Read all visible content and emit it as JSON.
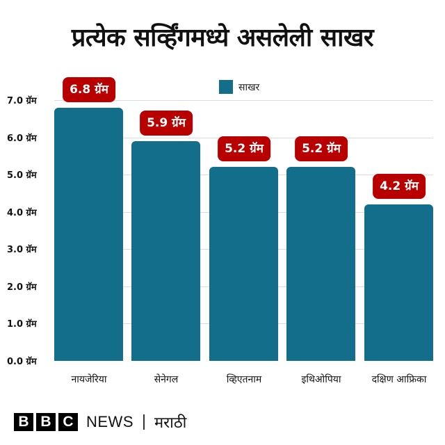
{
  "title": "प्रत्येक सर्व्हिंगमध्ये असलेली साखर",
  "legend": {
    "label": "साखर",
    "color": "#136e8b"
  },
  "y_ticks": [
    "0.0 ग्रॅम",
    "1.0 ग्रॅम",
    "2.0 ग्रॅम",
    "3.0 ग्रॅम",
    "4.0 ग्रॅम",
    "5.0 ग्रॅम",
    "6.0 ग्रॅम",
    "7.0 ग्रॅम"
  ],
  "bars": [
    {
      "label": "नायजेरिया",
      "value": 6.8,
      "badge": "6.8 ग्रॅम"
    },
    {
      "label": "सेनेगल",
      "value": 5.9,
      "badge": "5.9 ग्रॅम"
    },
    {
      "label": "व्हिएतनाम",
      "value": 5.2,
      "badge": "5.2 ग्रॅम"
    },
    {
      "label": "इथिओपिया",
      "value": 5.2,
      "badge": "5.2 ग्रॅम"
    },
    {
      "label": "दक्षिण आफ्रिका",
      "value": 4.2,
      "badge": "4.2 ग्रॅम"
    }
  ],
  "footer": {
    "bbc": [
      "B",
      "B",
      "C"
    ],
    "news": "NEWS",
    "language": "मराठी"
  },
  "colors": {
    "bar": "#136e8b",
    "badge": "#b80000"
  },
  "chart_data": {
    "type": "bar",
    "title": "प्रत्येक सर्व्हिंगमध्ये असलेली साखर",
    "categories": [
      "नायजेरिया",
      "सेनेगल",
      "व्हिएतनाम",
      "इथिओपिया",
      "दक्षिण आफ्रिका"
    ],
    "series": [
      {
        "name": "साखर",
        "values": [
          6.8,
          5.9,
          5.2,
          5.2,
          4.2
        ]
      }
    ],
    "data_labels": [
      "6.8 ग्रॅम",
      "5.9 ग्रॅम",
      "5.2 ग्रॅम",
      "5.2 ग्रॅम",
      "4.2 ग्रॅम"
    ],
    "xlabel": "",
    "ylabel": "",
    "y_tick_labels": [
      "0.0 ग्रॅम",
      "1.0 ग्रॅम",
      "2.0 ग्रॅम",
      "3.0 ग्रॅम",
      "4.0 ग्रॅम",
      "5.0 ग्रॅम",
      "6.0 ग्रॅम",
      "7.0 ग्रॅम"
    ],
    "ylim": [
      0,
      7
    ],
    "grid": true,
    "legend_position": "top"
  }
}
